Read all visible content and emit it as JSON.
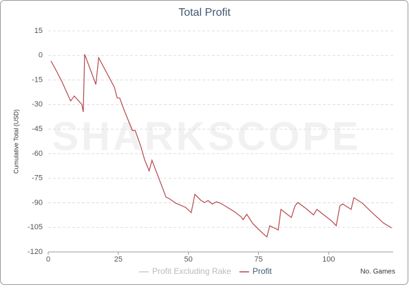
{
  "chart_data": {
    "type": "line",
    "title": "Total Profit",
    "x_label": "No. Games",
    "y_label": "Cumulative Total (USD)",
    "watermark": "SHARKSCOPE",
    "x": [
      1,
      3,
      5,
      8,
      9.3,
      12,
      12.5,
      13,
      17,
      18,
      23.6,
      24.6,
      25.5,
      27,
      30,
      31,
      33,
      34.4,
      36,
      37,
      42,
      43,
      45.5,
      49,
      51,
      52.3,
      54.5,
      55.8,
      57,
      58.5,
      60,
      61.4,
      66.3,
      68.8,
      69.5,
      70.8,
      73,
      75,
      77.4,
      78,
      79,
      81,
      82,
      83,
      85.5,
      86.7,
      88,
      89,
      92,
      94.6,
      95.8,
      98.3,
      101,
      102.7,
      104,
      105,
      108,
      109,
      112,
      115.5,
      119.6,
      122.4
    ],
    "series": [
      {
        "name": "Profit Excluding Rake",
        "color": "#cccccc",
        "values": [
          null,
          null,
          null,
          null,
          null,
          null,
          null,
          null,
          null,
          null,
          null,
          null,
          null,
          null,
          null,
          null,
          null,
          null,
          null,
          null,
          null,
          null,
          null,
          null,
          null,
          null,
          null,
          null,
          null,
          null,
          null,
          null,
          null,
          null,
          null,
          null,
          null,
          null,
          null,
          null,
          null,
          null,
          null,
          null,
          null,
          null,
          null,
          null,
          null,
          null,
          null,
          null,
          null,
          null,
          null,
          null,
          null,
          null,
          null,
          null,
          null,
          null
        ]
      },
      {
        "name": "Profit",
        "color": "#b5454a",
        "values": [
          -3.4,
          -9.7,
          -16.4,
          -27.8,
          -24.8,
          -29.9,
          -34.5,
          0.7,
          -17.7,
          -1.4,
          -19.4,
          -26,
          -26,
          -33,
          -45.8,
          -45.8,
          -55.4,
          -63.8,
          -70.5,
          -64,
          -86.5,
          -87.3,
          -90.2,
          -92.8,
          -96,
          -84.8,
          -88.6,
          -89.8,
          -88.6,
          -90.7,
          -89.4,
          -90.2,
          -95.3,
          -98.6,
          -100.3,
          -97,
          -102.8,
          -106.2,
          -110,
          -110.8,
          -104,
          -105.7,
          -106.6,
          -94,
          -97.4,
          -99,
          -91.9,
          -89.8,
          -93.6,
          -97.4,
          -94,
          -97.4,
          -101,
          -104,
          -91.9,
          -90.7,
          -94,
          -86.9,
          -90.2,
          -96,
          -102.4,
          -105.3
        ]
      }
    ],
    "xlim": [
      0,
      123
    ],
    "xticks": [
      0,
      25,
      50,
      75,
      100
    ],
    "ylim": [
      -120,
      15
    ],
    "yticks": [
      15,
      0,
      -15,
      -30,
      -45,
      -60,
      -75,
      -90,
      -105,
      -120
    ],
    "grid": true,
    "legend": "bottom"
  }
}
